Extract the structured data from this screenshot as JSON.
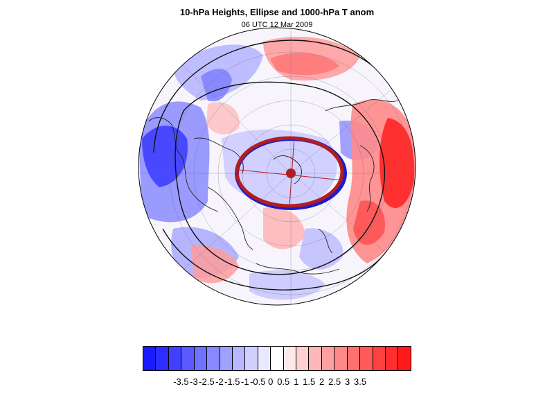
{
  "title": "10-hPa Heights, Ellipse and 1000-hPa T anom",
  "subtitle": "06 UTC 12 Mar 2009",
  "colorbar": {
    "colors": [
      "#1a1aff",
      "#2d2dff",
      "#4040ff",
      "#5a5aff",
      "#7171ff",
      "#8888ff",
      "#a0a0ff",
      "#b8b8ff",
      "#d0d0ff",
      "#e8e8ff",
      "#ffffff",
      "#ffe8e8",
      "#ffd0d0",
      "#ffb8b8",
      "#ffa0a0",
      "#ff8888",
      "#ff7171",
      "#ff5a5a",
      "#ff4040",
      "#ff2d2d",
      "#ff1a1a"
    ],
    "tick_labels": [
      "-3.5",
      "-3",
      "-2.5",
      "-2",
      "-1.5",
      "-1",
      "-0.5",
      "0",
      "0.5",
      "1",
      "1.5",
      "2",
      "2.5",
      "3",
      "3.5"
    ]
  }
}
